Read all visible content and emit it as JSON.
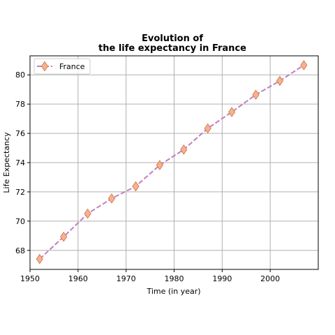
{
  "chart_data": {
    "type": "line",
    "title_line1": "Evolution of",
    "title_line2": "the life expectancy in France",
    "xlabel": "Time (in year)",
    "ylabel": "Life Expectancy",
    "xlim": [
      1950,
      2010
    ],
    "ylim": [
      66.7,
      81.3
    ],
    "xticks": [
      1950,
      1960,
      1970,
      1980,
      1990,
      2000
    ],
    "yticks": [
      68,
      70,
      72,
      74,
      76,
      78,
      80
    ],
    "grid": true,
    "legend_position": "top-left",
    "series": [
      {
        "name": "France",
        "line_color": "#c17fbd",
        "marker": "diamond",
        "marker_face_color": "#f6b38c",
        "marker_edge_color": "#d67c60",
        "x": [
          1952,
          1957,
          1962,
          1967,
          1972,
          1977,
          1982,
          1987,
          1992,
          1997,
          2002,
          2007
        ],
        "y": [
          67.41,
          68.93,
          70.51,
          71.55,
          72.38,
          73.83,
          74.89,
          76.34,
          77.46,
          78.64,
          79.59,
          80.66
        ]
      }
    ]
  }
}
